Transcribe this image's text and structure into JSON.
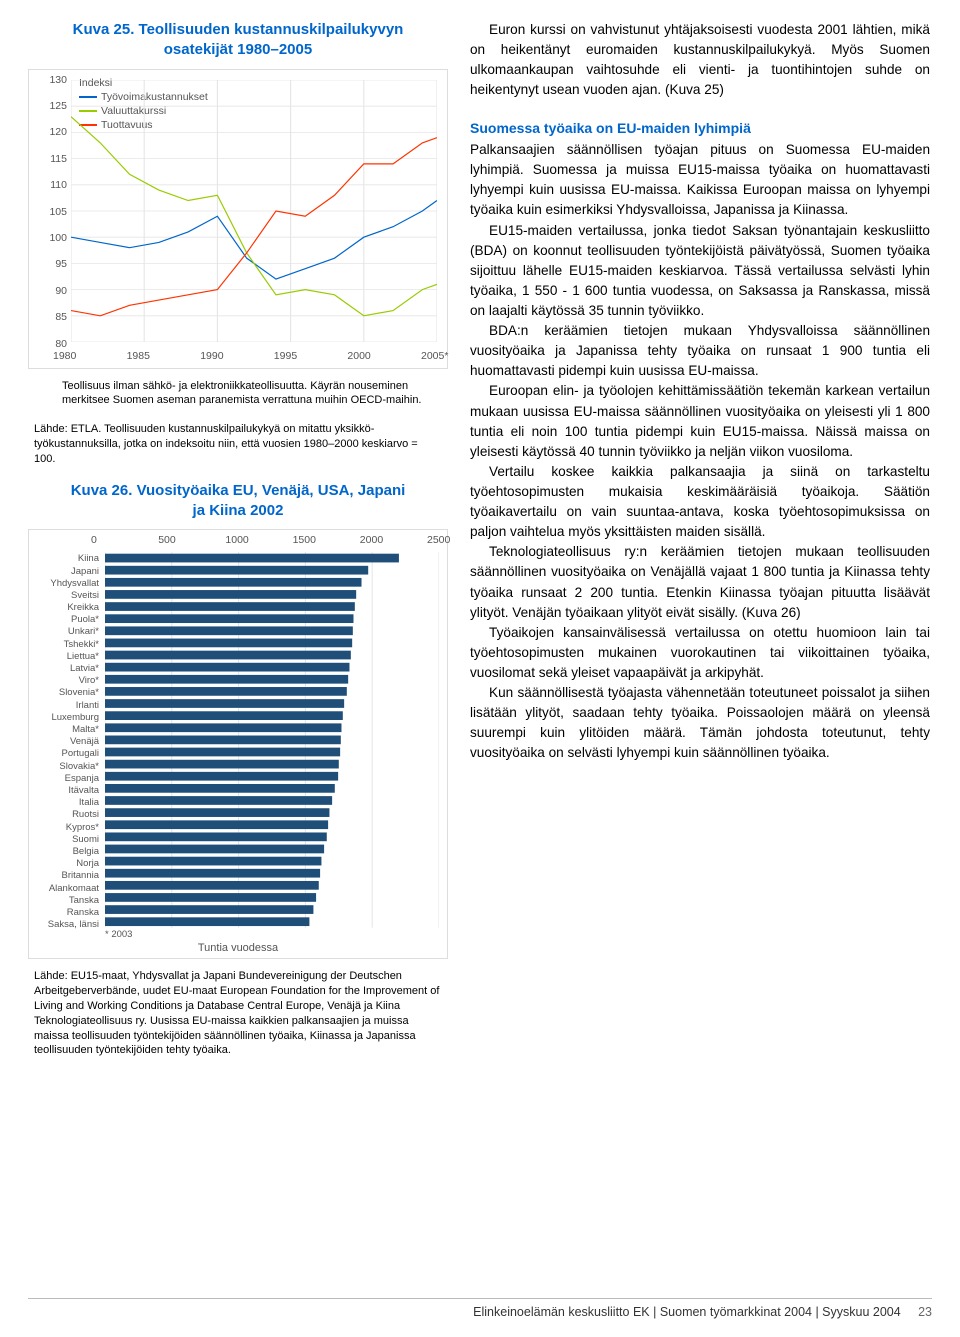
{
  "chart1": {
    "title_l1": "Kuva 25. Teollisuuden kustannuskilpailukyvyn",
    "title_l2": "osatekijät 1980–2005",
    "type": "line",
    "ylim": [
      80,
      130
    ],
    "ytick_step": 5,
    "xticks": [
      "1980",
      "1985",
      "1990",
      "1995",
      "2000",
      "2005*"
    ],
    "xvals": [
      1980,
      1985,
      1990,
      1995,
      2000,
      2005
    ],
    "legend_label": "Indeksi",
    "series": [
      {
        "name": "Työvoimakustannukset",
        "color": "#0066cc",
        "points": [
          [
            1980,
            100
          ],
          [
            1982,
            99
          ],
          [
            1984,
            98
          ],
          [
            1986,
            99
          ],
          [
            1988,
            101
          ],
          [
            1990,
            104
          ],
          [
            1992,
            96
          ],
          [
            1994,
            92
          ],
          [
            1996,
            94
          ],
          [
            1998,
            96
          ],
          [
            2000,
            100
          ],
          [
            2002,
            102
          ],
          [
            2004,
            105
          ],
          [
            2005,
            107
          ]
        ]
      },
      {
        "name": "Valuuttakurssi",
        "color": "#99cc00",
        "points": [
          [
            1980,
            123
          ],
          [
            1982,
            118
          ],
          [
            1984,
            112
          ],
          [
            1986,
            109
          ],
          [
            1988,
            107
          ],
          [
            1990,
            108
          ],
          [
            1992,
            97
          ],
          [
            1994,
            89
          ],
          [
            1996,
            90
          ],
          [
            1998,
            89
          ],
          [
            2000,
            85
          ],
          [
            2002,
            86
          ],
          [
            2004,
            90
          ],
          [
            2005,
            91
          ]
        ]
      },
      {
        "name": "Tuottavuus",
        "color": "#ff3300",
        "points": [
          [
            1980,
            86
          ],
          [
            1982,
            85
          ],
          [
            1984,
            87
          ],
          [
            1986,
            88
          ],
          [
            1988,
            89
          ],
          [
            1990,
            90
          ],
          [
            1992,
            97
          ],
          [
            1994,
            105
          ],
          [
            1996,
            104
          ],
          [
            1998,
            108
          ],
          [
            2000,
            114
          ],
          [
            2002,
            114
          ],
          [
            2004,
            118
          ],
          [
            2005,
            119
          ]
        ]
      }
    ],
    "grid_color": "#e5e5e5",
    "background_color": "#ffffff"
  },
  "caption1a": "Teollisuus ilman sähkö- ja elektroniikkateollisuutta. Käyrän nouseminen merkitsee Suomen aseman paranemista verrattuna muihin OECD-maihin.",
  "caption1b": "Lähde: ETLA. Teollisuuden kustannuskilpailukykyä on mitattu yksikkö­työkustannuksilla, jotka on indeksoitu niin, että vuosien 1980–2000 keskiarvo = 100.",
  "chart2": {
    "title_l1": "Kuva 26. Vuosityöaika EU, Venäjä, USA, Japani",
    "title_l2": "ja Kiina 2002",
    "type": "bar",
    "xlim": [
      0,
      2500
    ],
    "xtick_step": 500,
    "bar_color": "#1f4e79",
    "background_color": "#ffffff",
    "grid_color": "#e5e5e5",
    "categories": [
      "Kiina",
      "Japani",
      "Yhdysvallat",
      "Sveitsi",
      "Kreikka",
      "Puola*",
      "Unkari*",
      "Tshekki*",
      "Liettua*",
      "Latvia*",
      "Viro*",
      "Slovenia*",
      "Irlanti",
      "Luxemburg",
      "Malta*",
      "Venäjä",
      "Portugali",
      "Slovakia*",
      "Espanja",
      "Itävalta",
      "Italia",
      "Ruotsi",
      "Kypros*",
      "Suomi",
      "Belgia",
      "Norja",
      "Britannia",
      "Alankomaat",
      "Tanska",
      "Ranska",
      "Saksa, länsi"
    ],
    "values": [
      2200,
      1970,
      1920,
      1880,
      1870,
      1860,
      1855,
      1850,
      1840,
      1830,
      1820,
      1810,
      1790,
      1780,
      1770,
      1765,
      1760,
      1750,
      1745,
      1720,
      1700,
      1680,
      1670,
      1660,
      1640,
      1620,
      1610,
      1600,
      1580,
      1560,
      1530
    ],
    "xtitle": "Tuntia vuodessa",
    "footnote": "* 2003"
  },
  "caption2": "Lähde: EU15-maat, Yhdysvallat ja Japani Bundevereinigung der Deutschen Arbeitgeberverbände, uudet EU-maat European Foundation for the Improvement of Living and Working Conditions ja Database Central Europe, Venäjä ja Kiina Teknologiateollisuus ry. Uusissa EU-maissa kaikkien palkansaajien ja muissa maissa teollisuuden työntekijöiden säännöllinen työaika, Kiinassa ja Japanissa teollisuuden työntekijöiden tehty työaika.",
  "right": {
    "p1": "Euron kurssi on vahvistunut yhtäjaksoisesti vuodesta 2001 lähtien, mikä on heikentänyt euromaiden kustannus­kilpailukykyä. Myös Suomen ulkomaankaupan vaihtosuhde eli vienti- ja tuontihintojen suhde on heikentynyt usean vuoden ajan. (Kuva 25)",
    "sub": "Suomessa työaika on EU-maiden lyhimpiä",
    "p2": "Palkansaajien säännöllisen työajan pituus on Suomessa EU-maiden lyhimpiä. Suomessa ja muissa EU15-maissa työaika on huomattavasti lyhyempi kuin uusissa EU-maissa. Kaikissa Euroopan maissa on lyhyempi työaika kuin esimerkiksi Yhdysvalloissa, Japanissa ja Kiinassa.",
    "p3": "EU15-maiden vertailussa, jonka tiedot Saksan työnantajain keskusliitto (BDA) on koonnut teollisuuden työntekijöistä päivätyössä, Suomen työaika sijoittuu lähelle EU15-maiden keskiarvoa. Tässä vertailussa selvästi lyhin työaika, 1 550 - 1 600 tuntia vuodessa, on Saksassa ja Ranskassa, missä on laajalti käytössä 35 tunnin työviikko.",
    "p4": "BDA:n keräämien tietojen mukaan Yhdysvalloissa säännöllinen vuosityöaika ja Japanissa tehty työaika on runsaat 1 900 tuntia eli huomattavasti pidempi kuin uusissa EU-maissa.",
    "p5": "Euroopan elin- ja työolojen kehittämissäätiön tekemän karkean vertailun mukaan uusissa EU-maissa säännöllinen vuosityöaika on yleisesti yli 1 800 tuntia eli noin 100 tuntia pidempi kuin EU15-maissa. Näissä maissa on yleisesti käytössä 40 tunnin työviikko ja neljän viikon vuosiloma.",
    "p6": "Vertailu koskee kaikkia palkansaajia ja siinä on tarkasteltu työehtosopimusten mukaisia keskimääräisiä työaikoja. Säätiön työaikavertailu on vain suuntaa-antava, koska työehtosopimuksissa on paljon vaihtelua myös yksittäisten maiden sisällä.",
    "p7": "Teknologiateollisuus ry:n keräämien tietojen mukaan teollisuuden säännöllinen vuosityöaika on Venäjällä vajaat 1 800 tuntia ja Kiinassa tehty työaika runsaat 2 200 tuntia. Etenkin Kiinassa työajan pituutta lisäävät ylityöt. Venäjän työaikaan ylityöt eivät sisälly. (Kuva 26)",
    "p8": "Työaikojen kansainvälisessä vertailussa on otettu huomi­oon lain tai työehtosopimusten mukainen vuorokautinen tai viikoittainen työaika, vuosilomat sekä yleiset vapaapäivät ja arkipyhät.",
    "p9": "Kun säännöllisestä työajasta vähennetään toteutuneet poissalot ja siihen lisätään ylityöt, saadaan tehty työaika. Poissaolojen määrä on yleensä suurempi kuin ylitöiden määrä. Tämän johdosta toteutunut, tehty vuosityöaika on selvästi lyhyempi kuin säännöllinen työaika."
  },
  "footer": {
    "text": "Elinkeinoelämän keskusliitto EK | Suomen työmarkkinat 2004 | Syyskuu 2004",
    "page": "23"
  }
}
